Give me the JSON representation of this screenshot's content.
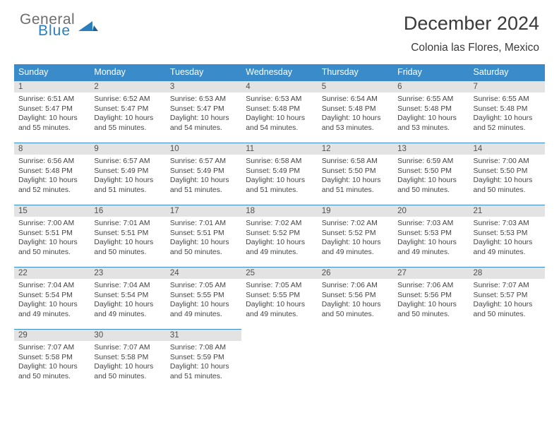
{
  "brand": {
    "line1": "General",
    "line2": "Blue"
  },
  "colors": {
    "header_bg": "#3a8bc9",
    "daynum_bg": "#e3e3e3",
    "rule": "#3a8bc9",
    "brand_gray": "#6d6d6d",
    "brand_blue": "#2a7fbf",
    "text": "#3a3a3a",
    "body_text": "#444444",
    "page_bg": "#ffffff"
  },
  "typography": {
    "month_fontsize": 27,
    "location_fontsize": 15.5,
    "weekday_fontsize": 12.5,
    "daynum_fontsize": 11.5,
    "body_fontsize": 10.4
  },
  "title": "December 2024",
  "location": "Colonia las Flores, Mexico",
  "weekdays": [
    "Sunday",
    "Monday",
    "Tuesday",
    "Wednesday",
    "Thursday",
    "Friday",
    "Saturday"
  ],
  "weeks": [
    [
      {
        "n": "1",
        "sunrise": "6:51 AM",
        "sunset": "5:47 PM",
        "day_h": "10",
        "day_m": "55"
      },
      {
        "n": "2",
        "sunrise": "6:52 AM",
        "sunset": "5:47 PM",
        "day_h": "10",
        "day_m": "55"
      },
      {
        "n": "3",
        "sunrise": "6:53 AM",
        "sunset": "5:47 PM",
        "day_h": "10",
        "day_m": "54"
      },
      {
        "n": "4",
        "sunrise": "6:53 AM",
        "sunset": "5:48 PM",
        "day_h": "10",
        "day_m": "54"
      },
      {
        "n": "5",
        "sunrise": "6:54 AM",
        "sunset": "5:48 PM",
        "day_h": "10",
        "day_m": "53"
      },
      {
        "n": "6",
        "sunrise": "6:55 AM",
        "sunset": "5:48 PM",
        "day_h": "10",
        "day_m": "53"
      },
      {
        "n": "7",
        "sunrise": "6:55 AM",
        "sunset": "5:48 PM",
        "day_h": "10",
        "day_m": "52"
      }
    ],
    [
      {
        "n": "8",
        "sunrise": "6:56 AM",
        "sunset": "5:48 PM",
        "day_h": "10",
        "day_m": "52"
      },
      {
        "n": "9",
        "sunrise": "6:57 AM",
        "sunset": "5:49 PM",
        "day_h": "10",
        "day_m": "51"
      },
      {
        "n": "10",
        "sunrise": "6:57 AM",
        "sunset": "5:49 PM",
        "day_h": "10",
        "day_m": "51"
      },
      {
        "n": "11",
        "sunrise": "6:58 AM",
        "sunset": "5:49 PM",
        "day_h": "10",
        "day_m": "51"
      },
      {
        "n": "12",
        "sunrise": "6:58 AM",
        "sunset": "5:50 PM",
        "day_h": "10",
        "day_m": "51"
      },
      {
        "n": "13",
        "sunrise": "6:59 AM",
        "sunset": "5:50 PM",
        "day_h": "10",
        "day_m": "50"
      },
      {
        "n": "14",
        "sunrise": "7:00 AM",
        "sunset": "5:50 PM",
        "day_h": "10",
        "day_m": "50"
      }
    ],
    [
      {
        "n": "15",
        "sunrise": "7:00 AM",
        "sunset": "5:51 PM",
        "day_h": "10",
        "day_m": "50"
      },
      {
        "n": "16",
        "sunrise": "7:01 AM",
        "sunset": "5:51 PM",
        "day_h": "10",
        "day_m": "50"
      },
      {
        "n": "17",
        "sunrise": "7:01 AM",
        "sunset": "5:51 PM",
        "day_h": "10",
        "day_m": "50"
      },
      {
        "n": "18",
        "sunrise": "7:02 AM",
        "sunset": "5:52 PM",
        "day_h": "10",
        "day_m": "49"
      },
      {
        "n": "19",
        "sunrise": "7:02 AM",
        "sunset": "5:52 PM",
        "day_h": "10",
        "day_m": "49"
      },
      {
        "n": "20",
        "sunrise": "7:03 AM",
        "sunset": "5:53 PM",
        "day_h": "10",
        "day_m": "49"
      },
      {
        "n": "21",
        "sunrise": "7:03 AM",
        "sunset": "5:53 PM",
        "day_h": "10",
        "day_m": "49"
      }
    ],
    [
      {
        "n": "22",
        "sunrise": "7:04 AM",
        "sunset": "5:54 PM",
        "day_h": "10",
        "day_m": "49"
      },
      {
        "n": "23",
        "sunrise": "7:04 AM",
        "sunset": "5:54 PM",
        "day_h": "10",
        "day_m": "49"
      },
      {
        "n": "24",
        "sunrise": "7:05 AM",
        "sunset": "5:55 PM",
        "day_h": "10",
        "day_m": "49"
      },
      {
        "n": "25",
        "sunrise": "7:05 AM",
        "sunset": "5:55 PM",
        "day_h": "10",
        "day_m": "49"
      },
      {
        "n": "26",
        "sunrise": "7:06 AM",
        "sunset": "5:56 PM",
        "day_h": "10",
        "day_m": "50"
      },
      {
        "n": "27",
        "sunrise": "7:06 AM",
        "sunset": "5:56 PM",
        "day_h": "10",
        "day_m": "50"
      },
      {
        "n": "28",
        "sunrise": "7:07 AM",
        "sunset": "5:57 PM",
        "day_h": "10",
        "day_m": "50"
      }
    ],
    [
      {
        "n": "29",
        "sunrise": "7:07 AM",
        "sunset": "5:58 PM",
        "day_h": "10",
        "day_m": "50"
      },
      {
        "n": "30",
        "sunrise": "7:07 AM",
        "sunset": "5:58 PM",
        "day_h": "10",
        "day_m": "50"
      },
      {
        "n": "31",
        "sunrise": "7:08 AM",
        "sunset": "5:59 PM",
        "day_h": "10",
        "day_m": "51"
      },
      null,
      null,
      null,
      null
    ]
  ]
}
